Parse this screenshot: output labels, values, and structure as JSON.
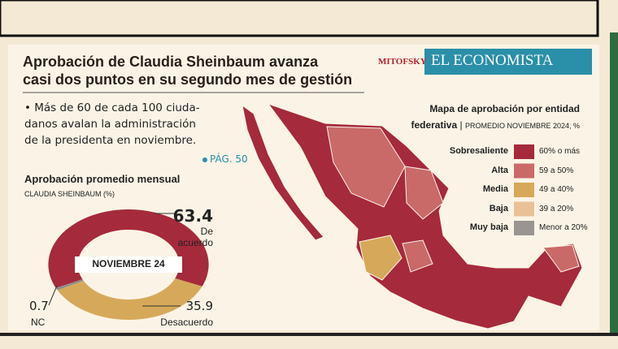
{
  "header": {
    "title_lines": [
      "Aprobación de Claudia Sheinbaum avanza",
      "casi dos puntos en su segundo mes de gestión"
    ],
    "logos": [
      "MITOFSKY",
      "EL ECONOMISTA"
    ]
  },
  "summary": {
    "lines": [
      "• Más de 60 de cada 100 ciuda-",
      "danos avalan la administración",
      "de la presidenta en noviembre."
    ],
    "page_ref": "PÁG. 50"
  },
  "chart_data": {
    "type": "donut",
    "title": "Aprobación promedio mensual",
    "subtitle": "CLAUDIA SHEINBAUM (%)",
    "center_label": "NOVIEMBRE 24",
    "categories": [
      "De acuerdo",
      "Desacuerdo",
      "NC"
    ],
    "values": [
      63.4,
      35.9,
      0.7
    ],
    "colors": [
      "#a52a3c",
      "#d6a95a",
      "#8c8c8c"
    ]
  },
  "map": {
    "title_lines": [
      "Mapa de aprobación por entidad",
      "federativa"
    ],
    "subtitle": "PROMEDIO NOVIEMBRE 2024, %",
    "legend": [
      {
        "label": "Sobresaliente",
        "range": "60% o más",
        "color": "#a52a3c"
      },
      {
        "label": "Alta",
        "range": "59 a 50%",
        "color": "#c96a68"
      },
      {
        "label": "Media",
        "range": "49 a 40%",
        "color": "#d6a95a"
      },
      {
        "label": "Baja",
        "range": "39 a 20%",
        "color": "#e9c196"
      },
      {
        "label": "Muy baja",
        "range": "Menor a 20%",
        "color": "#9a9590"
      }
    ]
  }
}
